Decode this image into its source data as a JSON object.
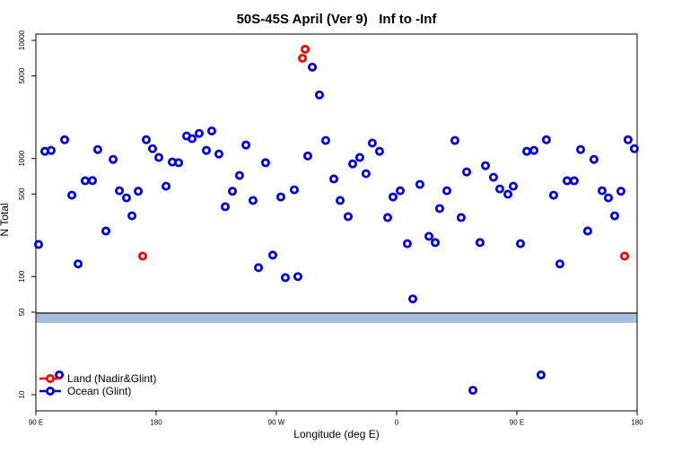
{
  "chart_data": {
    "type": "scatter",
    "title": "50S-45S April (Ver 9)   Inf to -Inf",
    "x_label": "Longitude (deg E)",
    "y_label": "N Total",
    "xlim": [
      90,
      540
    ],
    "xticks": [
      {
        "value": 90,
        "label": "90 E"
      },
      180,
      {
        "value": 270,
        "label": "90 W"
      },
      {
        "value": 360,
        "label": "0"
      },
      {
        "value": 450,
        "label": "90 E"
      },
      {
        "value": 540,
        "label": "180"
      }
    ],
    "ylim": [
      7.3,
      11300
    ],
    "yticks": [
      10,
      50,
      100,
      500,
      1000,
      5000,
      10000
    ],
    "log_y": true,
    "legend": "lower left",
    "series": [
      {
        "name": "Land (Nadir&Glint)",
        "color": "#ff0000",
        "x": [
          169.9,
          289.5,
          291.5,
          530.6
        ],
        "values": [
          149,
          7050,
          8400,
          149
        ]
      },
      {
        "name": "Ocean (Glint)",
        "color": "#0000ee",
        "x": [
          92,
          96.7,
          101.4,
          111.5,
          116.9,
          121.6,
          126.9,
          132.3,
          136.3,
          142.4,
          147.8,
          152.5,
          157.8,
          161.9,
          166.6,
          172.6,
          177.3,
          182,
          187.4,
          192.1,
          196.8,
          202.8,
          206.9,
          212.2,
          217.6,
          221.6,
          227,
          231.7,
          237.1,
          242.4,
          247.2,
          252.5,
          256.6,
          261.9,
          267.3,
          273.3,
          276.7,
          283.4,
          286.1,
          293.5,
          296.9,
          302.2,
          306.9,
          313,
          317.7,
          323.7,
          327.1,
          332.4,
          337.1,
          341.8,
          347.2,
          353.3,
          357.3,
          362.7,
          368,
          372.1,
          377.4,
          384.2,
          388.9,
          392.2,
          397.6,
          403.6,
          408.3,
          412.4,
          422.4,
          426.5,
          432.5,
          437.2,
          443.3,
          447.3,
          452.7,
          457.4,
          462.8,
          472.1,
          477.5,
          482.2,
          487.6,
          492.9,
          497.7,
          503,
          507.7,
          513.8,
          518.5,
          523.2,
          527.9,
          533.2,
          537.9,
          107.5,
          417.1,
          468.1
        ],
        "values": [
          187,
          1150,
          1170,
          1440,
          489,
          128,
          647,
          650,
          1190,
          243,
          982,
          533,
          464,
          327,
          528,
          1440,
          1210,
          1020,
          582,
          933,
          920,
          1550,
          1470,
          1630,
          1170,
          1710,
          1090,
          390,
          528,
          718,
          1300,
          441,
          119,
          920,
          152,
          472,
          98,
          543,
          100,
          1050,
          5930,
          3450,
          1420,
          670,
          441,
          322,
          900,
          1020,
          743,
          1350,
          1150,
          316,
          472,
          533,
          190,
          64.7,
          603,
          219,
          194,
          377,
          533,
          1420,
          316,
          769,
          194,
          869,
          693,
          552,
          498,
          582,
          190,
          1150,
          1170,
          1440,
          489,
          128,
          647,
          647,
          1190,
          243,
          982,
          533,
          464,
          327,
          528,
          1440,
          1210,
          14.7,
          10.9,
          14.7
        ]
      }
    ]
  }
}
